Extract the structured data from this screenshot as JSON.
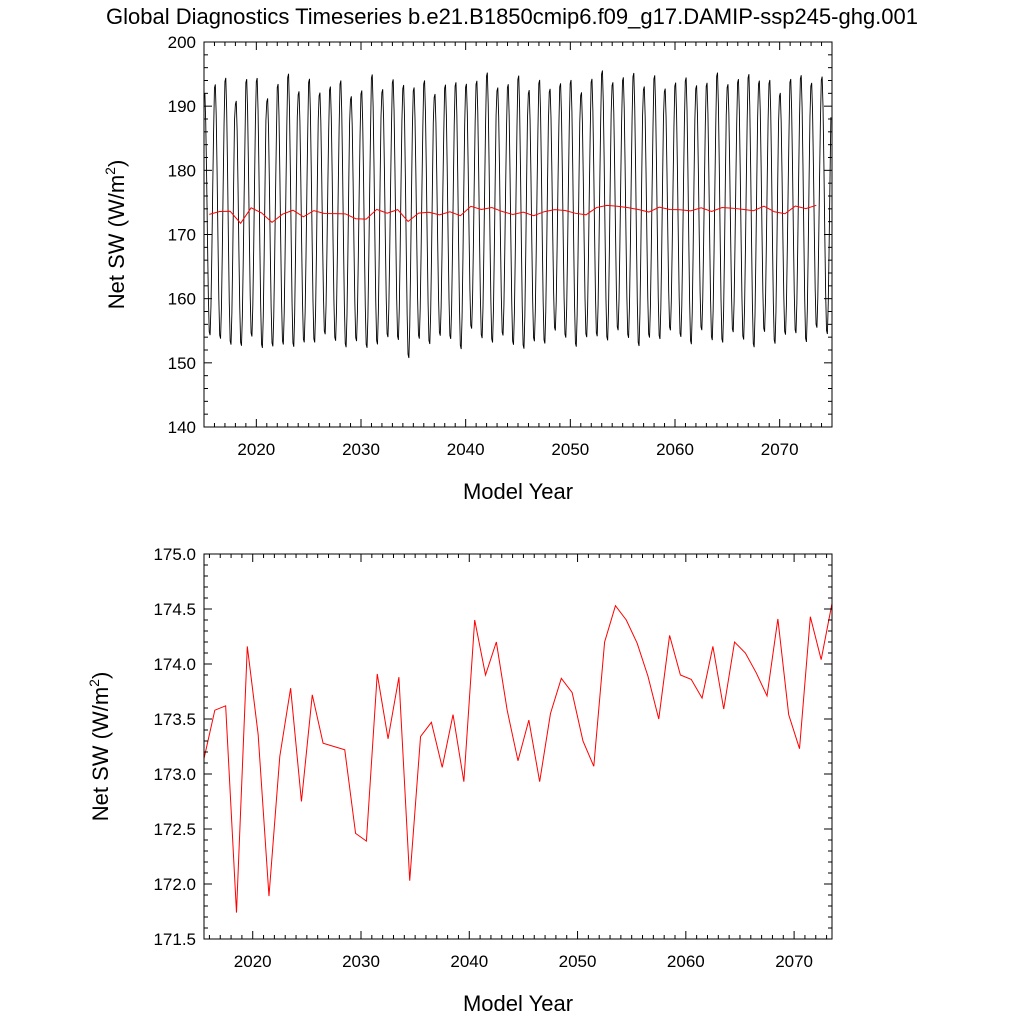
{
  "title": "Global Diagnostics Timeseries b.e21.B1850cmip6.f09_g17.DAMIP-ssp245-ghg.001",
  "colors": {
    "monthly": "#000000",
    "annual": "#ff0000",
    "axes": "#000000"
  },
  "annual_means": [
    173.14,
    173.58,
    173.62,
    171.74,
    174.16,
    173.36,
    171.89,
    173.16,
    173.78,
    172.75,
    173.72,
    173.28,
    173.25,
    173.22,
    172.46,
    172.39,
    173.91,
    173.32,
    173.88,
    172.03,
    173.34,
    173.47,
    173.06,
    173.54,
    172.93,
    174.4,
    173.9,
    174.2,
    173.58,
    173.12,
    173.49,
    172.93,
    173.55,
    173.87,
    173.74,
    173.3,
    173.07,
    174.2,
    174.53,
    174.4,
    174.19,
    173.89,
    173.5,
    174.26,
    173.9,
    173.86,
    173.69,
    174.16,
    173.59,
    174.2,
    174.1,
    173.92,
    173.71,
    174.41,
    173.54,
    173.23,
    174.43,
    174.04,
    174.55
  ],
  "chart_data": [
    {
      "type": "line",
      "xlabel": "Model Year",
      "ylabel": "Net SW (W/m2)",
      "ylabel_text": "Net SW (W/m",
      "ylabel_sup": "2",
      "ylabel_close": ")",
      "xlim": [
        2015,
        2075
      ],
      "ylim": [
        140,
        200
      ],
      "xticks": [
        2020,
        2030,
        2040,
        2050,
        2060,
        2070
      ],
      "yticks": [
        140,
        150,
        160,
        170,
        180,
        190,
        200
      ],
      "ytick_labels": [
        "140",
        "150",
        "160",
        "170",
        "180",
        "190",
        "200"
      ],
      "monthly_cycle": {
        "max_approx": 191,
        "min_approx": 150,
        "period_years": 1
      },
      "series": [
        {
          "role": "monthly",
          "color": "#000000",
          "x_start": 2015.0,
          "step": 0.0833
        },
        {
          "role": "annual",
          "color": "#ff0000",
          "x_start": 2015.5,
          "step": 1.0
        }
      ]
    },
    {
      "type": "line",
      "xlabel": "Model Year",
      "ylabel": "Net SW (W/m2)",
      "ylabel_text": "Net SW (W/m",
      "ylabel_sup": "2",
      "ylabel_close": ")",
      "xlim": [
        2015.5,
        2073.5
      ],
      "ylim": [
        171.5,
        175.0
      ],
      "xticks": [
        2020,
        2030,
        2040,
        2050,
        2060,
        2070
      ],
      "yticks": [
        171.5,
        172.0,
        172.5,
        173.0,
        173.5,
        174.0,
        174.5,
        175.0
      ],
      "ytick_labels": [
        "171.5",
        "172.0",
        "172.5",
        "173.0",
        "173.5",
        "174.0",
        "174.5",
        "175.0"
      ],
      "series": [
        {
          "role": "annual",
          "color": "#ff0000",
          "x_start": 2015.5,
          "step": 1.0
        }
      ]
    }
  ]
}
